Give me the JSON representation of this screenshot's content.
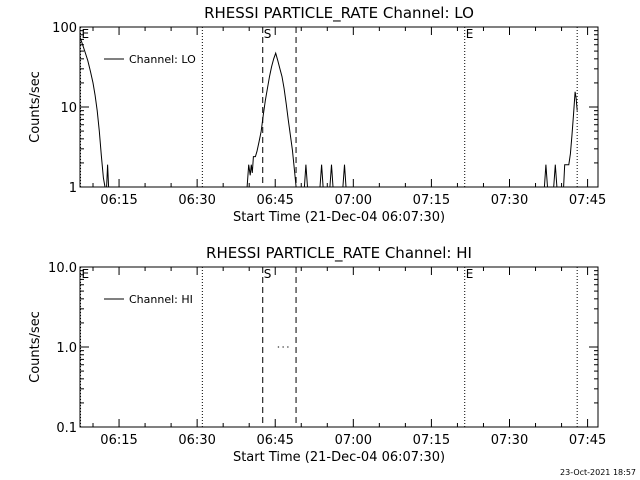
{
  "footer": {
    "timestamp": "23-Oct-2021 18:57"
  },
  "chart_data": [
    {
      "type": "line",
      "title": "RHESSI PARTICLE_RATE Channel: LO",
      "xlabel": "Start Time (21-Dec-04 06:07:30)",
      "ylabel": "Counts/sec",
      "yscale": "log",
      "ylim": [
        1,
        100
      ],
      "xlim_minutes": [
        367.5,
        467
      ],
      "x_ticks": [
        {
          "t": 375,
          "label": "06:15"
        },
        {
          "t": 390,
          "label": "06:30"
        },
        {
          "t": 405,
          "label": "06:45"
        },
        {
          "t": 420,
          "label": "07:00"
        },
        {
          "t": 435,
          "label": "07:15"
        },
        {
          "t": 450,
          "label": "07:30"
        },
        {
          "t": 465,
          "label": "07:45"
        }
      ],
      "y_ticks": [
        {
          "v": 1,
          "label": "1"
        },
        {
          "v": 10,
          "label": "10"
        },
        {
          "v": 100,
          "label": "100"
        }
      ],
      "legend": {
        "label": "Channel: LO",
        "placement": "top-left"
      },
      "markers": [
        {
          "t": 367.6,
          "label": "E",
          "style": "dotted"
        },
        {
          "t": 391.0,
          "label": "",
          "style": "dotted"
        },
        {
          "t": 402.6,
          "label": "S",
          "style": "dashed"
        },
        {
          "t": 409.0,
          "label": "",
          "style": "dashed"
        },
        {
          "t": 441.4,
          "label": "E",
          "style": "dotted"
        },
        {
          "t": 463.0,
          "label": "",
          "style": "dotted"
        }
      ],
      "series": [
        {
          "name": "Channel: LO",
          "segments": [
            [
              [
                367.5,
                75
              ],
              [
                368.0,
                60
              ],
              [
                368.5,
                48
              ],
              [
                369.0,
                38
              ],
              [
                369.5,
                28
              ],
              [
                370.0,
                20
              ],
              [
                370.4,
                14
              ],
              [
                370.8,
                9
              ],
              [
                371.2,
                5
              ],
              [
                371.6,
                2.5
              ],
              [
                372.0,
                1.3
              ],
              [
                372.3,
                1.0
              ]
            ],
            [
              [
                372.6,
                1
              ],
              [
                372.8,
                1.9
              ],
              [
                373.0,
                1
              ]
            ],
            [
              [
                399.6,
                1
              ],
              [
                399.9,
                1.9
              ],
              [
                400.2,
                1.4
              ],
              [
                400.4,
                1.9
              ],
              [
                400.6,
                1.5
              ],
              [
                400.8,
                2.4
              ],
              [
                401.2,
                2.4
              ],
              [
                401.5,
                2.8
              ],
              [
                401.9,
                3.7
              ],
              [
                402.3,
                5
              ],
              [
                402.7,
                8
              ],
              [
                403.1,
                12
              ],
              [
                403.5,
                17
              ],
              [
                403.9,
                24
              ],
              [
                404.3,
                32
              ],
              [
                404.7,
                40
              ],
              [
                405.1,
                47
              ],
              [
                405.5,
                38
              ],
              [
                405.9,
                30
              ],
              [
                406.3,
                24
              ],
              [
                406.7,
                17
              ],
              [
                407.1,
                11
              ],
              [
                407.5,
                7
              ],
              [
                407.9,
                4.5
              ],
              [
                408.3,
                2.9
              ],
              [
                408.7,
                1.6
              ],
              [
                409.0,
                1.0
              ]
            ],
            [
              [
                410.6,
                1
              ],
              [
                410.9,
                1.9
              ],
              [
                411.2,
                1
              ]
            ],
            [
              [
                413.6,
                1
              ],
              [
                413.9,
                1.9
              ],
              [
                414.2,
                1
              ]
            ],
            [
              [
                415.5,
                1
              ],
              [
                415.8,
                1.9
              ],
              [
                416.1,
                1
              ]
            ],
            [
              [
                418.0,
                1
              ],
              [
                418.3,
                1.9
              ],
              [
                418.6,
                1
              ]
            ],
            [
              [
                456.7,
                1
              ],
              [
                457.0,
                1.9
              ],
              [
                457.3,
                1
              ]
            ],
            [
              [
                458.5,
                1
              ],
              [
                458.8,
                1.9
              ],
              [
                459.1,
                1
              ]
            ],
            [
              [
                460.4,
                1
              ],
              [
                460.6,
                1.9
              ],
              [
                461.4,
                1.9
              ],
              [
                461.7,
                2.6
              ],
              [
                462.0,
                4.5
              ],
              [
                462.3,
                8
              ],
              [
                462.6,
                15.5
              ],
              [
                462.8,
                13
              ],
              [
                463.0,
                9
              ]
            ]
          ]
        }
      ]
    },
    {
      "type": "line",
      "title": "RHESSI PARTICLE_RATE Channel: HI",
      "xlabel": "Start Time (21-Dec-04 06:07:30)",
      "ylabel": "Counts/sec",
      "yscale": "log",
      "ylim": [
        0.1,
        10
      ],
      "xlim_minutes": [
        367.5,
        467
      ],
      "x_ticks": [
        {
          "t": 375,
          "label": "06:15"
        },
        {
          "t": 390,
          "label": "06:30"
        },
        {
          "t": 405,
          "label": "06:45"
        },
        {
          "t": 420,
          "label": "07:00"
        },
        {
          "t": 435,
          "label": "07:15"
        },
        {
          "t": 450,
          "label": "07:30"
        },
        {
          "t": 465,
          "label": "07:45"
        }
      ],
      "y_ticks": [
        {
          "v": 0.1,
          "label": "0.1"
        },
        {
          "v": 1,
          "label": "1.0"
        },
        {
          "v": 10,
          "label": "10.0"
        }
      ],
      "legend": {
        "label": "Channel: HI",
        "placement": "top-left"
      },
      "markers": [
        {
          "t": 367.6,
          "label": "E",
          "style": "dotted"
        },
        {
          "t": 391.0,
          "label": "",
          "style": "dotted"
        },
        {
          "t": 402.6,
          "label": "S",
          "style": "dashed"
        },
        {
          "t": 409.0,
          "label": "",
          "style": "dashed"
        },
        {
          "t": 441.4,
          "label": "E",
          "style": "dotted"
        },
        {
          "t": 463.0,
          "label": "",
          "style": "dotted"
        }
      ],
      "series": [
        {
          "name": "Channel: HI",
          "segments": [
            [
              [
                405.5,
                1
              ],
              [
                405.75,
                1
              ]
            ],
            [
              [
                406.4,
                1
              ],
              [
                406.65,
                1
              ]
            ],
            [
              [
                407.3,
                1
              ],
              [
                407.55,
                1
              ]
            ]
          ]
        }
      ]
    }
  ]
}
